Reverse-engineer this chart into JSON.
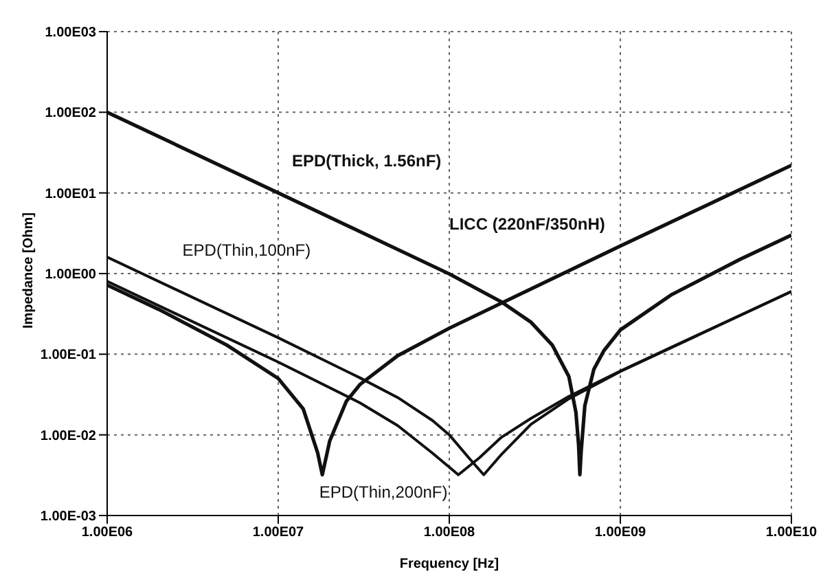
{
  "chart_data": {
    "type": "line",
    "xlabel": "Frequency [Hz]",
    "ylabel": "Impedance [Ohm]",
    "log": "xy",
    "grid": true,
    "legend": false,
    "marker": "none",
    "line_style": "solid",
    "xlim": [
      1000000,
      10000000000
    ],
    "ylim": [
      0.001,
      1000
    ],
    "xticks": [
      {
        "value": 1000000,
        "label": "1.00E06"
      },
      {
        "value": 10000000,
        "label": "1.00E07"
      },
      {
        "value": 100000000,
        "label": "1.00E08"
      },
      {
        "value": 1000000000,
        "label": "1.00E09"
      },
      {
        "value": 10000000000,
        "label": "1.00E10"
      }
    ],
    "yticks": [
      {
        "value": 0.001,
        "label": "1.00E-03"
      },
      {
        "value": 0.01,
        "label": "1.00E-02"
      },
      {
        "value": 0.1,
        "label": "1.00E-01"
      },
      {
        "value": 1,
        "label": "1.00E00"
      },
      {
        "value": 10,
        "label": "1.00E01"
      },
      {
        "value": 100,
        "label": "1.00E02"
      },
      {
        "value": 1000,
        "label": "1.00E03"
      }
    ],
    "series": [
      {
        "name": "EPD(Thick, 1.56nF)",
        "color": "#111111",
        "x": [
          1000000,
          10000000,
          100000000,
          200000000,
          300000000,
          400000000,
          500000000,
          550000000,
          570000000,
          580000000,
          590000000,
          620000000,
          700000000,
          800000000,
          1000000000,
          2000000000,
          5000000000,
          10000000000
        ],
        "values": [
          100,
          10,
          0.99,
          0.45,
          0.25,
          0.13,
          0.053,
          0.019,
          0.0075,
          0.0032,
          0.0062,
          0.023,
          0.065,
          0.11,
          0.2,
          0.55,
          1.5,
          3
        ]
      },
      {
        "name": "LICC (220nF/350nH)",
        "color": "#111111",
        "x": [
          1000000,
          2000000,
          5000000,
          10000000,
          14000000,
          17000000,
          18100000,
          20000000,
          25000000,
          30000000,
          50000000,
          100000000,
          1000000000,
          10000000000
        ],
        "values": [
          0.72,
          0.36,
          0.13,
          0.05,
          0.021,
          0.006,
          0.0032,
          0.0084,
          0.026,
          0.042,
          0.096,
          0.21,
          2.2,
          22
        ]
      },
      {
        "name": "EPD(Thin,100nF)",
        "color": "#111111",
        "x": [
          1000000,
          10000000,
          30000000,
          50000000,
          80000000,
          100000000,
          130000000,
          159000000,
          200000000,
          300000000,
          500000000,
          1000000000,
          10000000000
        ],
        "values": [
          1.6,
          0.16,
          0.051,
          0.029,
          0.015,
          0.01,
          0.0052,
          0.0032,
          0.0056,
          0.0135,
          0.028,
          0.061,
          0.6
        ]
      },
      {
        "name": "EPD(Thin,200nF)",
        "color": "#111111",
        "x": [
          1000000,
          10000000,
          30000000,
          50000000,
          80000000,
          113000000,
          150000000,
          200000000,
          300000000,
          500000000,
          1000000000,
          10000000000
        ],
        "values": [
          0.8,
          0.08,
          0.025,
          0.013,
          0.0059,
          0.0032,
          0.0052,
          0.0092,
          0.016,
          0.03,
          0.062,
          0.6
        ]
      }
    ]
  }
}
